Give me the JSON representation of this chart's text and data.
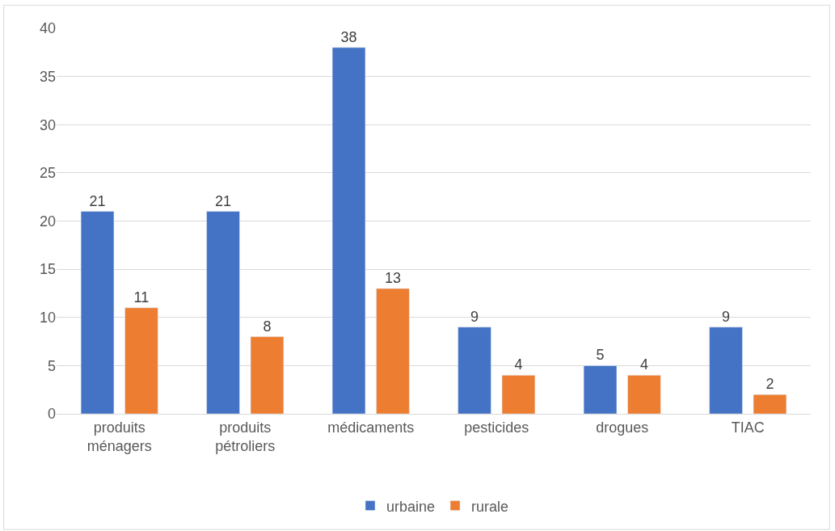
{
  "chart_data": {
    "type": "bar",
    "categories": [
      "produits ménagers",
      "produits pétroliers",
      "médicaments",
      "pesticides",
      "drogues",
      "TIAC"
    ],
    "series": [
      {
        "name": "urbaine",
        "color": "#4472c4",
        "values": [
          21,
          21,
          38,
          9,
          5,
          9
        ]
      },
      {
        "name": "rurale",
        "color": "#ed7d31",
        "values": [
          11,
          8,
          13,
          4,
          4,
          2
        ]
      }
    ],
    "ylim": [
      0,
      40
    ],
    "yticks": [
      0,
      5,
      10,
      15,
      20,
      25,
      30,
      35,
      40
    ],
    "grid": "y",
    "legend": "bottom",
    "data_labels": true
  }
}
